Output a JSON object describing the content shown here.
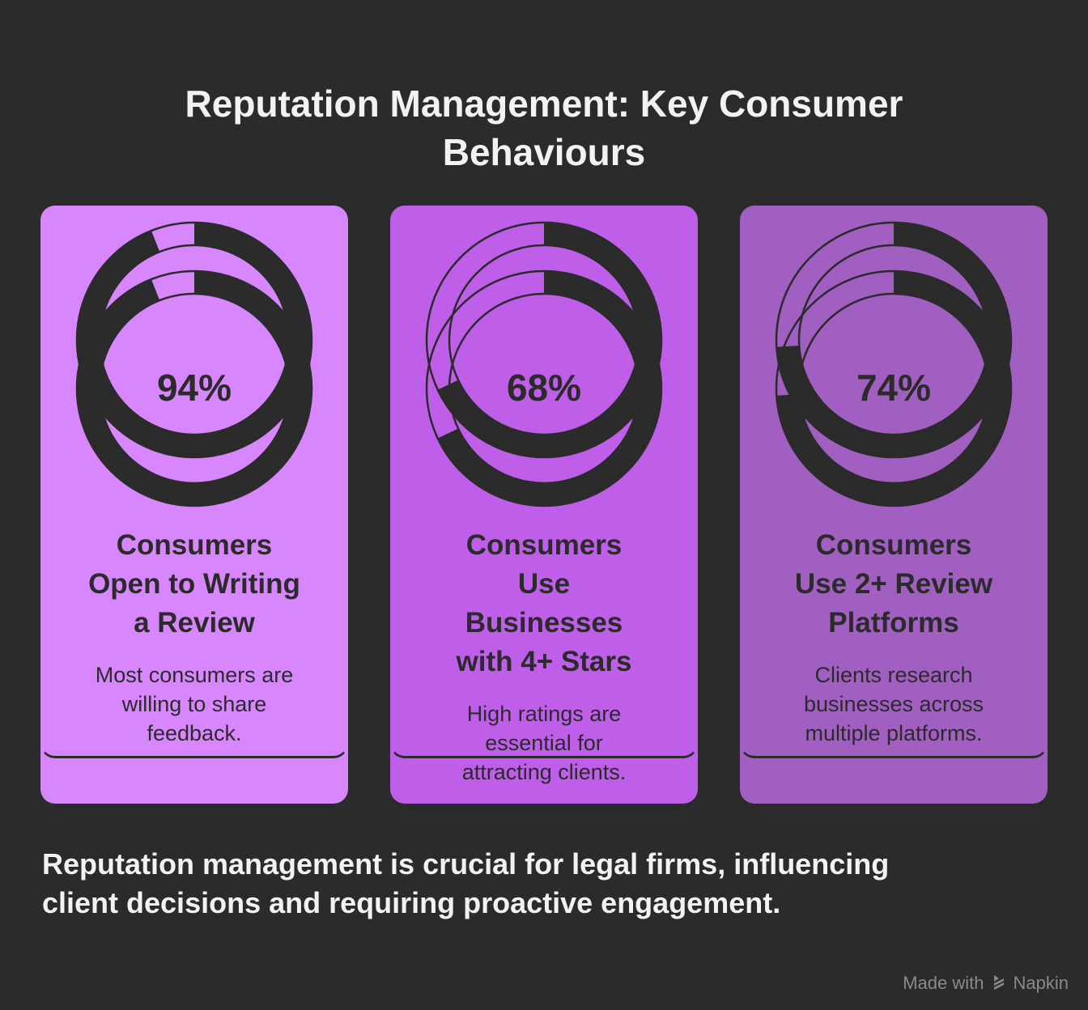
{
  "title": [
    "Reputation Management: Key Consumer",
    "Behaviours"
  ],
  "cards": [
    {
      "percent": 94,
      "percent_label": "94%",
      "heading": [
        "Consumers",
        "Open to Writing",
        "a Review"
      ],
      "description": [
        "Most consumers are",
        "willing to share",
        "feedback."
      ],
      "color": "#d886fb"
    },
    {
      "percent": 68,
      "percent_label": "68%",
      "heading": [
        "Consumers",
        "Use",
        "Businesses",
        "with 4+ Stars"
      ],
      "description": [
        "High ratings are",
        "essential for",
        "attracting clients."
      ],
      "color": "#bf5fe9"
    },
    {
      "percent": 74,
      "percent_label": "74%",
      "heading": [
        "Consumers",
        "Use 2+ Review",
        "Platforms"
      ],
      "description": [
        "Clients research",
        "businesses across",
        "multiple platforms."
      ],
      "color": "#a15fc1"
    }
  ],
  "footer": [
    "Reputation management is crucial for legal firms, influencing",
    "client decisions and requiring proactive engagement."
  ],
  "brand": {
    "prefix": "Made with",
    "name": "Napkin",
    "icon": "napkin-logo-icon"
  },
  "colors": {
    "background": "#2b2b2b",
    "ring": "#2b2b2b"
  }
}
